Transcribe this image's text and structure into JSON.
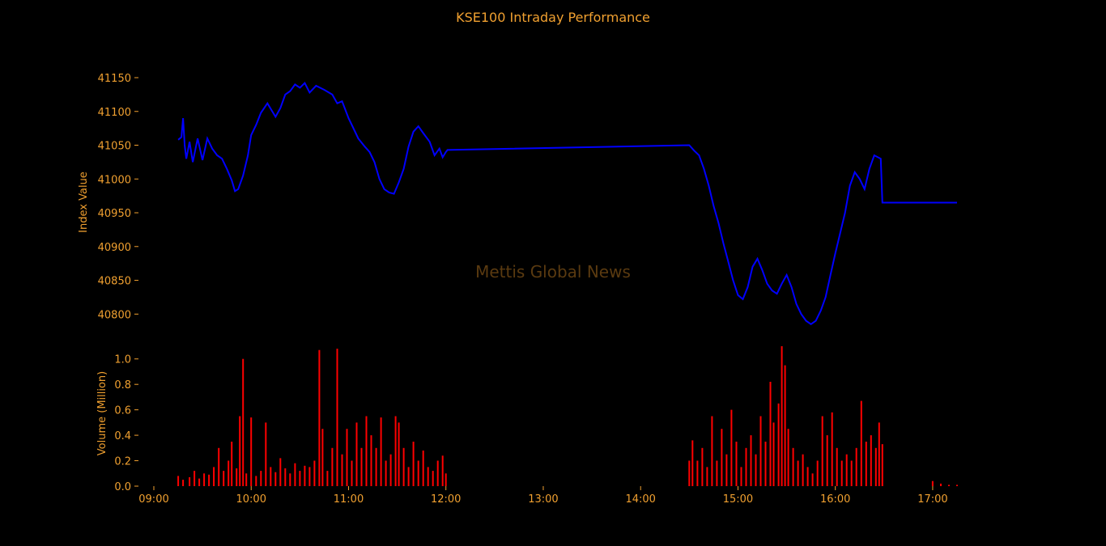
{
  "chart_data": {
    "type": "line",
    "title": "KSE100 Intraday Performance",
    "watermark": "Mettis Global News",
    "colors": {
      "background": "#000000",
      "text": "#f0a030",
      "index_line": "#0000ff",
      "volume_bars": "#ff0000"
    },
    "x_axis": {
      "range": [
        "09:00",
        "17:15"
      ],
      "ticks": [
        "09:00",
        "10:00",
        "11:00",
        "12:00",
        "13:00",
        "14:00",
        "15:00",
        "16:00",
        "17:00"
      ]
    },
    "index_panel": {
      "ylabel": "Index Value",
      "ylim": [
        40780,
        41150
      ],
      "ticks": [
        "40800",
        "40850",
        "40900",
        "40950",
        "41000",
        "41050",
        "41100",
        "41150"
      ],
      "series": {
        "name": "KSE100",
        "points": [
          [
            "09:15",
            41058
          ],
          [
            "09:17",
            41062
          ],
          [
            "09:18",
            41090
          ],
          [
            "09:19",
            41050
          ],
          [
            "09:20",
            41030
          ],
          [
            "09:22",
            41055
          ],
          [
            "09:24",
            41025
          ],
          [
            "09:27",
            41060
          ],
          [
            "09:30",
            41028
          ],
          [
            "09:33",
            41060
          ],
          [
            "09:36",
            41045
          ],
          [
            "09:39",
            41035
          ],
          [
            "09:42",
            41030
          ],
          [
            "09:45",
            41015
          ],
          [
            "09:48",
            40998
          ],
          [
            "09:50",
            40982
          ],
          [
            "09:52",
            40985
          ],
          [
            "09:55",
            41005
          ],
          [
            "09:58",
            41035
          ],
          [
            "10:00",
            41065
          ],
          [
            "10:03",
            41080
          ],
          [
            "10:06",
            41098
          ],
          [
            "10:10",
            41112
          ],
          [
            "10:13",
            41100
          ],
          [
            "10:15",
            41092
          ],
          [
            "10:18",
            41105
          ],
          [
            "10:21",
            41125
          ],
          [
            "10:24",
            41130
          ],
          [
            "10:27",
            41140
          ],
          [
            "10:30",
            41135
          ],
          [
            "10:33",
            41142
          ],
          [
            "10:36",
            41128
          ],
          [
            "10:40",
            41138
          ],
          [
            "10:45",
            41132
          ],
          [
            "10:50",
            41125
          ],
          [
            "10:53",
            41112
          ],
          [
            "10:56",
            41115
          ],
          [
            "11:00",
            41090
          ],
          [
            "11:03",
            41075
          ],
          [
            "11:06",
            41060
          ],
          [
            "11:10",
            41048
          ],
          [
            "11:13",
            41040
          ],
          [
            "11:16",
            41025
          ],
          [
            "11:19",
            41000
          ],
          [
            "11:22",
            40985
          ],
          [
            "11:25",
            40980
          ],
          [
            "11:28",
            40978
          ],
          [
            "11:31",
            40995
          ],
          [
            "11:34",
            41015
          ],
          [
            "11:37",
            41048
          ],
          [
            "11:40",
            41070
          ],
          [
            "11:43",
            41078
          ],
          [
            "11:46",
            41068
          ],
          [
            "11:50",
            41055
          ],
          [
            "11:53",
            41035
          ],
          [
            "11:56",
            41045
          ],
          [
            "11:58",
            41032
          ],
          [
            "12:00",
            41040
          ],
          [
            "12:01",
            41043
          ],
          [
            "14:30",
            41050
          ],
          [
            "14:33",
            41042
          ],
          [
            "14:36",
            41035
          ],
          [
            "14:39",
            41015
          ],
          [
            "14:42",
            40990
          ],
          [
            "14:45",
            40960
          ],
          [
            "14:48",
            40935
          ],
          [
            "14:51",
            40905
          ],
          [
            "14:54",
            40878
          ],
          [
            "14:57",
            40850
          ],
          [
            "15:00",
            40828
          ],
          [
            "15:03",
            40822
          ],
          [
            "15:06",
            40840
          ],
          [
            "15:09",
            40870
          ],
          [
            "15:12",
            40882
          ],
          [
            "15:15",
            40865
          ],
          [
            "15:18",
            40845
          ],
          [
            "15:21",
            40835
          ],
          [
            "15:24",
            40830
          ],
          [
            "15:27",
            40845
          ],
          [
            "15:30",
            40858
          ],
          [
            "15:33",
            40840
          ],
          [
            "15:36",
            40815
          ],
          [
            "15:39",
            40800
          ],
          [
            "15:42",
            40790
          ],
          [
            "15:45",
            40785
          ],
          [
            "15:48",
            40790
          ],
          [
            "15:51",
            40805
          ],
          [
            "15:54",
            40825
          ],
          [
            "15:57",
            40858
          ],
          [
            "16:00",
            40890
          ],
          [
            "16:03",
            40920
          ],
          [
            "16:06",
            40950
          ],
          [
            "16:09",
            40990
          ],
          [
            "16:12",
            41010
          ],
          [
            "16:15",
            41000
          ],
          [
            "16:18",
            40985
          ],
          [
            "16:21",
            41015
          ],
          [
            "16:24",
            41035
          ],
          [
            "16:28",
            41030
          ],
          [
            "16:29",
            40965
          ],
          [
            "17:15",
            40965
          ]
        ]
      }
    },
    "volume_panel": {
      "ylabel": "Volume (Million)",
      "ylim": [
        0,
        1.1
      ],
      "ticks": [
        "0.0",
        "0.2",
        "0.4",
        "0.6",
        "0.8",
        "1.0"
      ],
      "series": {
        "name": "Volume",
        "bars": [
          [
            "09:15",
            0.08
          ],
          [
            "09:18",
            0.05
          ],
          [
            "09:22",
            0.07
          ],
          [
            "09:25",
            0.12
          ],
          [
            "09:28",
            0.06
          ],
          [
            "09:31",
            0.1
          ],
          [
            "09:34",
            0.09
          ],
          [
            "09:37",
            0.15
          ],
          [
            "09:40",
            0.3
          ],
          [
            "09:43",
            0.12
          ],
          [
            "09:46",
            0.2
          ],
          [
            "09:48",
            0.35
          ],
          [
            "09:51",
            0.14
          ],
          [
            "09:53",
            0.55
          ],
          [
            "09:55",
            1.0
          ],
          [
            "09:57",
            0.1
          ],
          [
            "10:00",
            0.54
          ],
          [
            "10:03",
            0.08
          ],
          [
            "10:06",
            0.12
          ],
          [
            "10:09",
            0.5
          ],
          [
            "10:12",
            0.15
          ],
          [
            "10:15",
            0.11
          ],
          [
            "10:18",
            0.22
          ],
          [
            "10:21",
            0.14
          ],
          [
            "10:24",
            0.1
          ],
          [
            "10:27",
            0.18
          ],
          [
            "10:30",
            0.12
          ],
          [
            "10:33",
            0.16
          ],
          [
            "10:36",
            0.15
          ],
          [
            "10:39",
            0.2
          ],
          [
            "10:42",
            1.07
          ],
          [
            "10:44",
            0.45
          ],
          [
            "10:47",
            0.12
          ],
          [
            "10:50",
            0.3
          ],
          [
            "10:53",
            1.08
          ],
          [
            "10:56",
            0.25
          ],
          [
            "10:59",
            0.45
          ],
          [
            "11:02",
            0.2
          ],
          [
            "11:05",
            0.5
          ],
          [
            "11:08",
            0.3
          ],
          [
            "11:11",
            0.55
          ],
          [
            "11:14",
            0.4
          ],
          [
            "11:17",
            0.3
          ],
          [
            "11:20",
            0.54
          ],
          [
            "11:23",
            0.2
          ],
          [
            "11:26",
            0.25
          ],
          [
            "11:29",
            0.55
          ],
          [
            "11:31",
            0.5
          ],
          [
            "11:34",
            0.3
          ],
          [
            "11:37",
            0.15
          ],
          [
            "11:40",
            0.35
          ],
          [
            "11:43",
            0.2
          ],
          [
            "11:46",
            0.28
          ],
          [
            "11:49",
            0.15
          ],
          [
            "11:52",
            0.12
          ],
          [
            "11:55",
            0.2
          ],
          [
            "11:58",
            0.24
          ],
          [
            "12:00",
            0.1
          ],
          [
            "14:30",
            0.2
          ],
          [
            "14:32",
            0.36
          ],
          [
            "14:35",
            0.2
          ],
          [
            "14:38",
            0.3
          ],
          [
            "14:41",
            0.15
          ],
          [
            "14:44",
            0.55
          ],
          [
            "14:47",
            0.2
          ],
          [
            "14:50",
            0.45
          ],
          [
            "14:53",
            0.25
          ],
          [
            "14:56",
            0.6
          ],
          [
            "14:59",
            0.35
          ],
          [
            "15:02",
            0.15
          ],
          [
            "15:05",
            0.3
          ],
          [
            "15:08",
            0.4
          ],
          [
            "15:11",
            0.25
          ],
          [
            "15:14",
            0.55
          ],
          [
            "15:17",
            0.35
          ],
          [
            "15:20",
            0.82
          ],
          [
            "15:22",
            0.5
          ],
          [
            "15:25",
            0.65
          ],
          [
            "15:27",
            1.1
          ],
          [
            "15:29",
            0.95
          ],
          [
            "15:31",
            0.45
          ],
          [
            "15:34",
            0.3
          ],
          [
            "15:37",
            0.2
          ],
          [
            "15:40",
            0.25
          ],
          [
            "15:43",
            0.15
          ],
          [
            "15:46",
            0.1
          ],
          [
            "15:49",
            0.2
          ],
          [
            "15:52",
            0.55
          ],
          [
            "15:55",
            0.4
          ],
          [
            "15:58",
            0.58
          ],
          [
            "16:01",
            0.3
          ],
          [
            "16:04",
            0.2
          ],
          [
            "16:07",
            0.25
          ],
          [
            "16:10",
            0.2
          ],
          [
            "16:13",
            0.3
          ],
          [
            "16:16",
            0.67
          ],
          [
            "16:19",
            0.35
          ],
          [
            "16:22",
            0.4
          ],
          [
            "16:25",
            0.3
          ],
          [
            "16:27",
            0.5
          ],
          [
            "16:29",
            0.33
          ],
          [
            "17:00",
            0.04
          ],
          [
            "17:05",
            0.02
          ],
          [
            "17:10",
            0.01
          ],
          [
            "17:15",
            0.01
          ]
        ]
      }
    }
  }
}
